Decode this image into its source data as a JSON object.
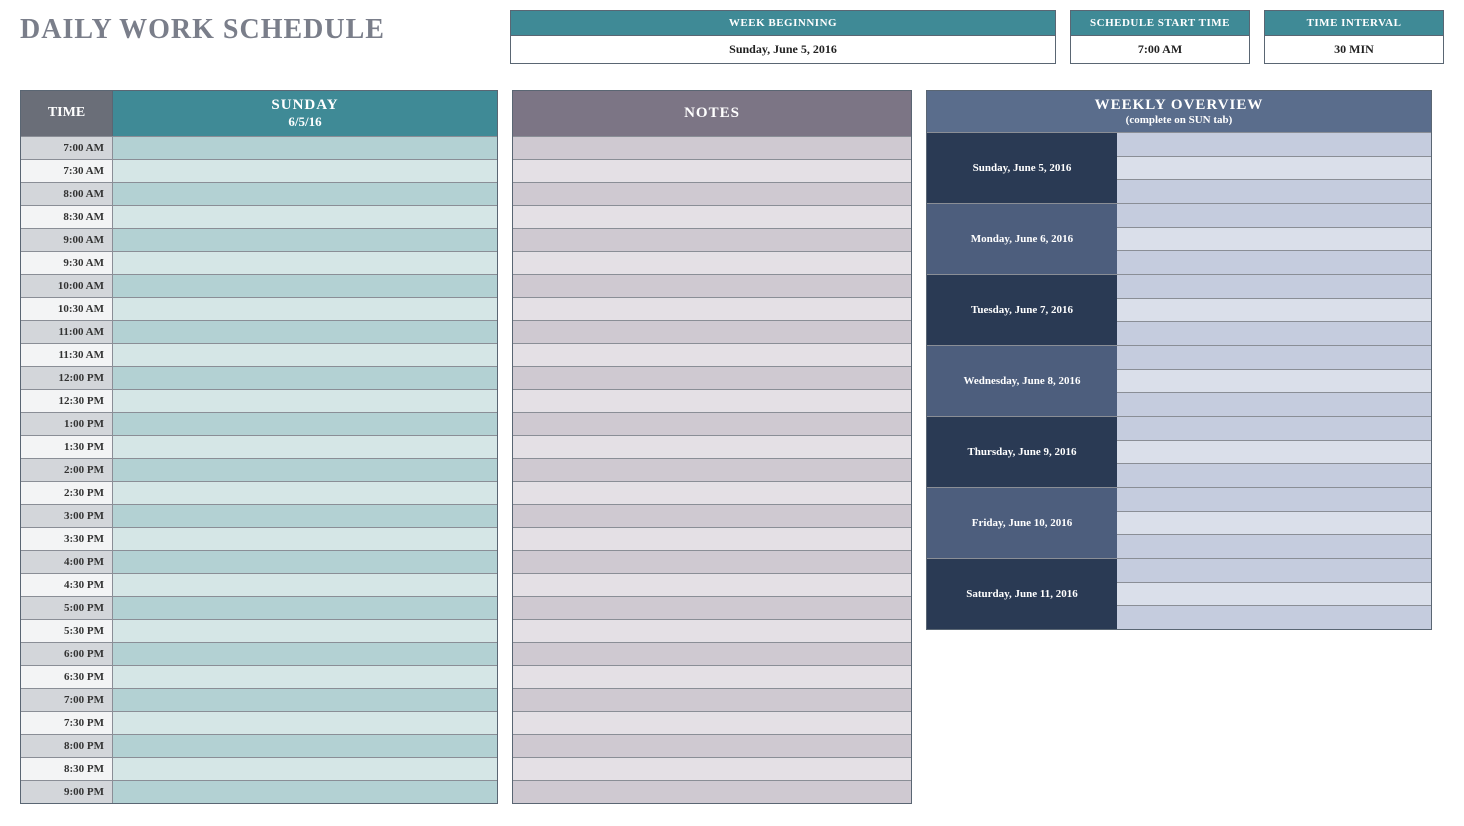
{
  "title": "DAILY WORK SCHEDULE",
  "info": {
    "week_beginning": {
      "label": "WEEK BEGINNING",
      "value": "Sunday, June 5, 2016"
    },
    "start_time": {
      "label": "SCHEDULE START TIME",
      "value": "7:00 AM"
    },
    "time_interval": {
      "label": "TIME INTERVAL",
      "value": "30 MIN"
    }
  },
  "schedule": {
    "time_header": "TIME",
    "day_name": "SUNDAY",
    "day_date": "6/5/16",
    "times": [
      "7:00 AM",
      "7:30 AM",
      "8:00 AM",
      "8:30 AM",
      "9:00 AM",
      "9:30 AM",
      "10:00 AM",
      "10:30 AM",
      "11:00 AM",
      "11:30 AM",
      "12:00 PM",
      "12:30 PM",
      "1:00 PM",
      "1:30 PM",
      "2:00 PM",
      "2:30 PM",
      "3:00 PM",
      "3:30 PM",
      "4:00 PM",
      "4:30 PM",
      "5:00 PM",
      "5:30 PM",
      "6:00 PM",
      "6:30 PM",
      "7:00 PM",
      "7:30 PM",
      "8:00 PM",
      "8:30 PM",
      "9:00 PM"
    ],
    "colors": {
      "time_header_bg": "#6a6e78",
      "day_header_bg": "#3f8a96",
      "time_cell_alt_a": "#d3d6da",
      "time_cell_alt_b": "#f3f4f5",
      "slot_alt_a": "#b3d1d3",
      "slot_alt_b": "#d5e6e6"
    }
  },
  "notes": {
    "header": "NOTES",
    "row_count": 29,
    "colors": {
      "header_bg": "#7c7585",
      "row_alt_a": "#cfc9d1",
      "row_alt_b": "#e4e0e5"
    }
  },
  "overview": {
    "header_title": "WEEKLY OVERVIEW",
    "header_sub": "(complete on SUN tab)",
    "days": [
      "Sunday, June 5, 2016",
      "Monday, June 6, 2016",
      "Tuesday, June 7, 2016",
      "Wednesday, June 8, 2016",
      "Thursday, June 9, 2016",
      "Friday, June 10, 2016",
      "Saturday, June 11, 2016"
    ],
    "colors": {
      "header_bg": "#5a6d8c",
      "day_alt_a": "#2a3a54",
      "day_alt_b": "#4d5e7d",
      "slot_alt_a": "#c5ccde",
      "slot_alt_b": "#dadfea"
    }
  }
}
